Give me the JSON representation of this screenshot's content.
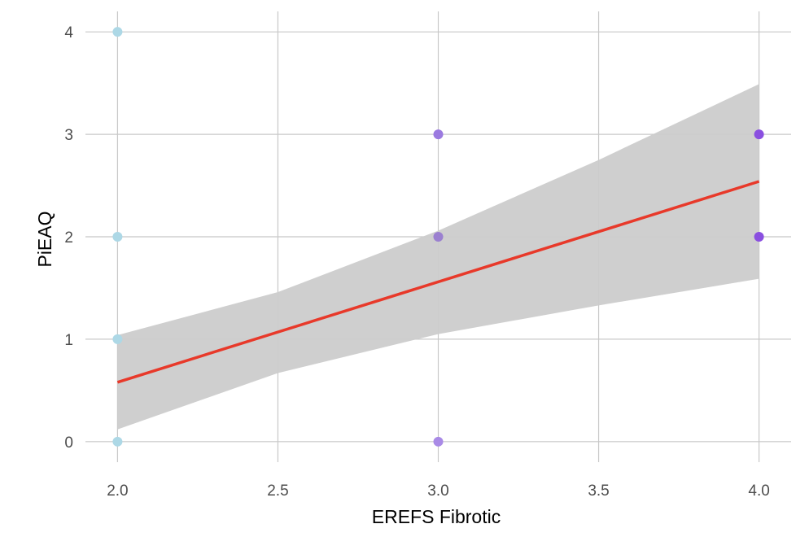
{
  "chart_data": {
    "type": "scatter",
    "xlabel": "EREFS Fibrotic",
    "ylabel": "PiEAQ",
    "xlim": [
      1.9,
      4.1
    ],
    "ylim": [
      -0.2,
      4.2
    ],
    "x_ticks": [
      "2.0",
      "2.5",
      "3.0",
      "3.5",
      "4.0"
    ],
    "y_ticks": [
      "0",
      "1",
      "2",
      "3",
      "4"
    ],
    "grid": true,
    "legend": "none",
    "points": [
      {
        "x": 2.0,
        "y": 4,
        "color": "#add8e6"
      },
      {
        "x": 2.0,
        "y": 2,
        "color": "#add8e6"
      },
      {
        "x": 2.0,
        "y": 1,
        "color": "#add8e6"
      },
      {
        "x": 2.0,
        "y": 0,
        "color": "#add8e6"
      },
      {
        "x": 3.0,
        "y": 3,
        "color": "#9b7ae0"
      },
      {
        "x": 3.0,
        "y": 2,
        "color": "#9b80d0"
      },
      {
        "x": 3.0,
        "y": 0,
        "color": "#a98ae6"
      },
      {
        "x": 4.0,
        "y": 3,
        "color": "#8a4fe0"
      },
      {
        "x": 4.0,
        "y": 2,
        "color": "#8a4fe0"
      }
    ],
    "trend_line": {
      "x": [
        2.0,
        4.0
      ],
      "y": [
        0.58,
        2.54
      ],
      "color": "#e8392a"
    },
    "confidence_band": {
      "x": [
        2.0,
        2.5,
        3.0,
        3.5,
        4.0
      ],
      "lower": [
        0.12,
        0.67,
        1.05,
        1.33,
        1.59
      ],
      "upper": [
        1.04,
        1.46,
        2.06,
        2.75,
        3.49
      ],
      "color": "#cccccc"
    },
    "colors": {
      "grid": "#c8c8c8",
      "tick_label": "#4d4d4d"
    }
  }
}
